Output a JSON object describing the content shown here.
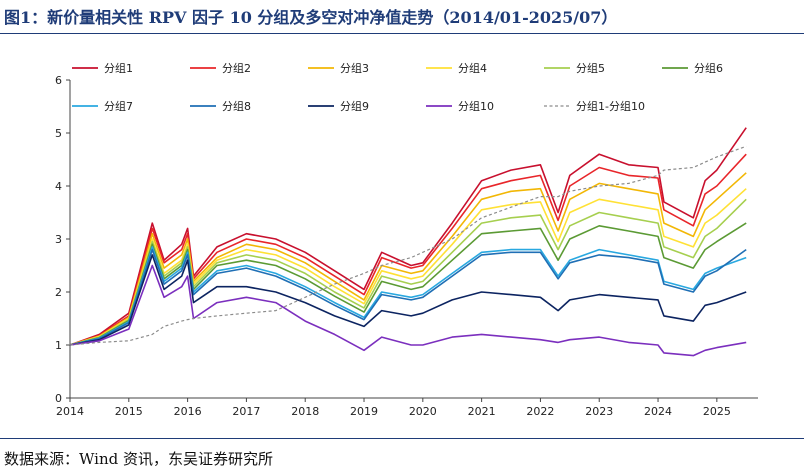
{
  "title": "图1：新价量相关性 RPV 因子 10 分组及多空对冲净值走势（2014/01-2025/07）",
  "source": "数据来源：Wind 资讯，东吴证券研究所",
  "chart_data": {
    "type": "line",
    "title": "图1：新价量相关性 RPV 因子 10 分组及多空对冲净值走势（2014/01-2025/07）",
    "xlabel": "",
    "ylabel": "",
    "xlim": [
      2014.0,
      2025.7
    ],
    "ylim": [
      0,
      6
    ],
    "x_ticks": [
      "2014",
      "2015",
      "2016",
      "2017",
      "2018",
      "2019",
      "2020",
      "2021",
      "2022",
      "2023",
      "2024",
      "2025"
    ],
    "y_ticks": [
      0,
      1,
      2,
      3,
      4,
      5,
      6
    ],
    "grid": false,
    "legend_position": "top",
    "x": [
      2014.0,
      2014.5,
      2015.0,
      2015.4,
      2015.6,
      2015.9,
      2016.0,
      2016.1,
      2016.5,
      2017.0,
      2017.5,
      2018.0,
      2018.5,
      2019.0,
      2019.3,
      2019.8,
      2020.0,
      2020.5,
      2021.0,
      2021.5,
      2022.0,
      2022.3,
      2022.5,
      2023.0,
      2023.5,
      2024.0,
      2024.1,
      2024.6,
      2024.8,
      2025.0,
      2025.5
    ],
    "series": [
      {
        "name": "分组1",
        "color": "#c8102e",
        "style": "solid",
        "values": [
          1.0,
          1.2,
          1.6,
          3.3,
          2.6,
          2.9,
          3.2,
          2.3,
          2.85,
          3.1,
          3.0,
          2.75,
          2.4,
          2.05,
          2.75,
          2.5,
          2.55,
          3.3,
          4.1,
          4.3,
          4.4,
          3.5,
          4.2,
          4.6,
          4.4,
          4.35,
          3.7,
          3.4,
          4.1,
          4.3,
          5.1
        ]
      },
      {
        "name": "分组2",
        "color": "#e8262a",
        "style": "solid",
        "values": [
          1.0,
          1.18,
          1.55,
          3.2,
          2.55,
          2.8,
          3.1,
          2.25,
          2.75,
          3.0,
          2.9,
          2.65,
          2.3,
          1.95,
          2.65,
          2.45,
          2.5,
          3.2,
          3.95,
          4.1,
          4.2,
          3.35,
          4.0,
          4.35,
          4.2,
          4.15,
          3.55,
          3.25,
          3.85,
          4.0,
          4.6
        ]
      },
      {
        "name": "分组3",
        "color": "#f2b705",
        "style": "solid",
        "values": [
          1.0,
          1.17,
          1.52,
          3.1,
          2.45,
          2.7,
          3.0,
          2.2,
          2.65,
          2.9,
          2.8,
          2.55,
          2.2,
          1.85,
          2.5,
          2.35,
          2.4,
          3.05,
          3.75,
          3.9,
          3.95,
          3.15,
          3.75,
          4.05,
          3.95,
          3.85,
          3.3,
          3.05,
          3.55,
          3.75,
          4.25
        ]
      },
      {
        "name": "分组4",
        "color": "#ffe135",
        "style": "solid",
        "values": [
          1.0,
          1.16,
          1.5,
          3.0,
          2.35,
          2.6,
          2.9,
          2.15,
          2.6,
          2.8,
          2.7,
          2.45,
          2.1,
          1.78,
          2.4,
          2.25,
          2.3,
          2.9,
          3.55,
          3.65,
          3.7,
          2.95,
          3.5,
          3.75,
          3.65,
          3.55,
          3.05,
          2.85,
          3.3,
          3.45,
          3.95
        ]
      },
      {
        "name": "分组5",
        "color": "#a6cf4f",
        "style": "solid",
        "values": [
          1.0,
          1.15,
          1.48,
          2.95,
          2.3,
          2.55,
          2.85,
          2.1,
          2.55,
          2.7,
          2.6,
          2.35,
          2.0,
          1.7,
          2.3,
          2.15,
          2.2,
          2.75,
          3.3,
          3.4,
          3.45,
          2.8,
          3.25,
          3.5,
          3.4,
          3.3,
          2.85,
          2.65,
          3.05,
          3.2,
          3.75
        ]
      },
      {
        "name": "分组6",
        "color": "#5b9a34",
        "style": "solid",
        "values": [
          1.0,
          1.14,
          1.46,
          2.9,
          2.25,
          2.5,
          2.8,
          2.05,
          2.5,
          2.6,
          2.5,
          2.25,
          1.92,
          1.62,
          2.2,
          2.05,
          2.1,
          2.6,
          3.1,
          3.15,
          3.2,
          2.6,
          3.0,
          3.25,
          3.15,
          3.05,
          2.65,
          2.45,
          2.8,
          2.95,
          3.3
        ]
      },
      {
        "name": "分组7",
        "color": "#29a8e0",
        "style": "solid",
        "values": [
          1.0,
          1.13,
          1.44,
          2.85,
          2.2,
          2.45,
          2.75,
          2.0,
          2.4,
          2.5,
          2.35,
          2.1,
          1.8,
          1.52,
          2.0,
          1.9,
          1.95,
          2.35,
          2.75,
          2.8,
          2.8,
          2.3,
          2.6,
          2.8,
          2.7,
          2.6,
          2.2,
          2.05,
          2.35,
          2.45,
          2.65
        ]
      },
      {
        "name": "分组8",
        "color": "#1f6fb5",
        "style": "solid",
        "values": [
          1.0,
          1.12,
          1.42,
          2.8,
          2.15,
          2.4,
          2.7,
          1.95,
          2.35,
          2.45,
          2.3,
          2.05,
          1.75,
          1.48,
          1.95,
          1.85,
          1.9,
          2.3,
          2.7,
          2.75,
          2.75,
          2.25,
          2.55,
          2.7,
          2.65,
          2.55,
          2.15,
          2.0,
          2.3,
          2.4,
          2.8
        ]
      },
      {
        "name": "分组9",
        "color": "#0c2461",
        "style": "solid",
        "values": [
          1.0,
          1.1,
          1.38,
          2.7,
          2.05,
          2.3,
          2.6,
          1.8,
          2.1,
          2.1,
          2.0,
          1.8,
          1.55,
          1.35,
          1.65,
          1.55,
          1.6,
          1.85,
          2.0,
          1.95,
          1.9,
          1.65,
          1.85,
          1.95,
          1.9,
          1.85,
          1.55,
          1.45,
          1.75,
          1.8,
          2.0
        ]
      },
      {
        "name": "分组10",
        "color": "#7b2fbe",
        "style": "solid",
        "values": [
          1.0,
          1.08,
          1.3,
          2.5,
          1.9,
          2.1,
          2.3,
          1.5,
          1.8,
          1.9,
          1.8,
          1.45,
          1.2,
          0.9,
          1.15,
          1.0,
          1.0,
          1.15,
          1.2,
          1.15,
          1.1,
          1.05,
          1.1,
          1.15,
          1.05,
          1.0,
          0.85,
          0.8,
          0.9,
          0.95,
          1.05
        ]
      },
      {
        "name": "分组1-分组10",
        "color": "#8c8c8c",
        "style": "dashed",
        "values": [
          1.0,
          1.05,
          1.08,
          1.2,
          1.35,
          1.45,
          1.48,
          1.5,
          1.55,
          1.6,
          1.65,
          1.9,
          2.15,
          2.35,
          2.5,
          2.65,
          2.75,
          3.0,
          3.4,
          3.6,
          3.8,
          3.8,
          3.9,
          4.0,
          4.05,
          4.2,
          4.3,
          4.35,
          4.45,
          4.55,
          4.75
        ]
      }
    ]
  }
}
